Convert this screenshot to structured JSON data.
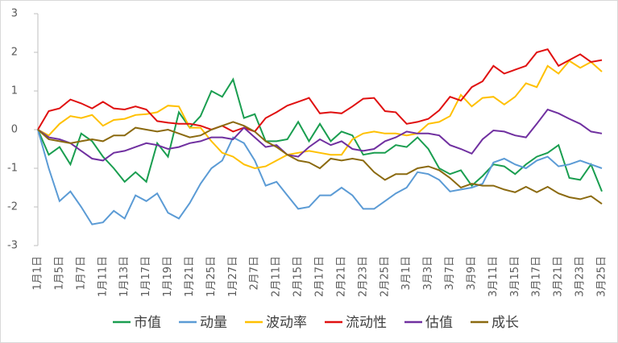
{
  "chart_data": {
    "type": "line",
    "categories": [
      "1月1日",
      null,
      "1月5日",
      null,
      "1月7日",
      null,
      "1月11日",
      null,
      "1月13日",
      null,
      "1月17日",
      null,
      "1月19日",
      null,
      "1月21日",
      null,
      "1月25日",
      null,
      "1月27日",
      null,
      "2月7日",
      null,
      "2月11日",
      null,
      "2月15日",
      null,
      "2月17日",
      null,
      "2月21日",
      null,
      "2月23日",
      null,
      "2月25日",
      null,
      "3月1日",
      null,
      "3月3日",
      null,
      "3月7日",
      null,
      "3月9日",
      null,
      "3月11日",
      null,
      "3月15日",
      null,
      "3月17日",
      null,
      "3月21日",
      null,
      "3月23日",
      null,
      "3月25日"
    ],
    "series": [
      {
        "name": "市值",
        "color": "#1a9e50",
        "values": [
          0,
          -0.65,
          -0.45,
          -0.9,
          -0.1,
          -0.3,
          -0.7,
          -1.0,
          -1.35,
          -1.1,
          -1.35,
          -0.35,
          -0.7,
          0.45,
          0.05,
          0.35,
          1.0,
          0.85,
          1.3,
          0.3,
          0.4,
          -0.3,
          -0.3,
          -0.25,
          0.2,
          -0.3,
          0.15,
          -0.3,
          -0.05,
          -0.15,
          -0.65,
          -0.6,
          -0.6,
          -0.4,
          -0.45,
          -0.2,
          -0.5,
          -1.0,
          -1.15,
          -1.05,
          -1.45,
          -1.2,
          -0.9,
          -0.95,
          -1.15,
          -0.9,
          -0.7,
          -0.6,
          -0.4,
          -1.25,
          -1.3,
          -0.9,
          -1.6
        ]
      },
      {
        "name": "动量",
        "color": "#5b9bd5",
        "values": [
          0,
          -1.0,
          -1.85,
          -1.6,
          -2.0,
          -2.45,
          -2.4,
          -2.1,
          -2.3,
          -1.7,
          -1.85,
          -1.65,
          -2.15,
          -2.3,
          -1.9,
          -1.4,
          -1.0,
          -0.8,
          -0.2,
          -0.35,
          -0.8,
          -1.45,
          -1.35,
          -1.7,
          -2.05,
          -2.0,
          -1.7,
          -1.7,
          -1.5,
          -1.7,
          -2.05,
          -2.05,
          -1.85,
          -1.65,
          -1.5,
          -1.1,
          -1.15,
          -1.3,
          -1.6,
          -1.55,
          -1.5,
          -1.4,
          -0.85,
          -0.75,
          -0.9,
          -1.0,
          -0.8,
          -0.7,
          -0.95,
          -0.9,
          -0.8,
          -0.9,
          -1.0
        ]
      },
      {
        "name": "波动率",
        "color": "#ffc000",
        "values": [
          0,
          -0.15,
          0.15,
          0.35,
          0.3,
          0.38,
          0.1,
          0.25,
          0.28,
          0.38,
          0.4,
          0.45,
          0.62,
          0.6,
          0.05,
          0.05,
          -0.3,
          -0.6,
          -0.7,
          -0.9,
          -1.0,
          -0.95,
          -0.8,
          -0.65,
          -0.6,
          -0.55,
          -0.6,
          -0.65,
          -0.65,
          -0.25,
          -0.1,
          -0.05,
          -0.1,
          -0.1,
          -0.15,
          -0.1,
          0.15,
          0.2,
          0.35,
          0.9,
          0.6,
          0.82,
          0.85,
          0.65,
          0.85,
          1.2,
          1.1,
          1.65,
          1.45,
          1.78,
          1.6,
          1.75,
          1.5
        ]
      },
      {
        "name": "流动性",
        "color": "#e01010",
        "values": [
          0,
          0.48,
          0.55,
          0.78,
          0.68,
          0.55,
          0.72,
          0.55,
          0.52,
          0.6,
          0.52,
          0.22,
          0.18,
          0.15,
          0.15,
          0.1,
          0.0,
          0.1,
          -0.05,
          0.05,
          -0.05,
          0.3,
          0.45,
          0.62,
          0.72,
          0.82,
          0.42,
          0.45,
          0.42,
          0.6,
          0.8,
          0.82,
          0.48,
          0.45,
          0.15,
          0.2,
          0.28,
          0.5,
          0.85,
          0.75,
          1.1,
          1.25,
          1.65,
          1.45,
          1.55,
          1.65,
          2.0,
          2.08,
          1.65,
          1.8,
          1.95,
          1.75,
          1.8
        ]
      },
      {
        "name": "估值",
        "color": "#7030a0",
        "values": [
          0,
          -0.2,
          -0.25,
          -0.35,
          -0.55,
          -0.75,
          -0.8,
          -0.6,
          -0.55,
          -0.45,
          -0.35,
          -0.4,
          -0.5,
          -0.45,
          -0.35,
          -0.3,
          -0.2,
          -0.2,
          -0.25,
          0.05,
          -0.2,
          -0.45,
          -0.4,
          -0.65,
          -0.7,
          -0.45,
          -0.25,
          -0.4,
          -0.3,
          -0.5,
          -0.55,
          -0.5,
          -0.3,
          -0.2,
          -0.05,
          -0.1,
          -0.1,
          -0.15,
          -0.4,
          -0.5,
          -0.62,
          -0.25,
          -0.02,
          -0.05,
          -0.15,
          -0.2,
          0.15,
          0.52,
          0.42,
          0.28,
          0.15,
          -0.05,
          -0.1
        ]
      },
      {
        "name": "成长",
        "color": "#8b6a10",
        "values": [
          0,
          -0.25,
          -0.3,
          -0.35,
          -0.3,
          -0.25,
          -0.3,
          -0.15,
          -0.15,
          0.05,
          0.0,
          -0.05,
          0.0,
          -0.1,
          -0.2,
          -0.15,
          0.0,
          0.1,
          0.2,
          0.1,
          -0.05,
          -0.3,
          -0.45,
          -0.65,
          -0.8,
          -0.85,
          -1.0,
          -0.75,
          -0.8,
          -0.75,
          -0.8,
          -1.1,
          -1.3,
          -1.15,
          -1.15,
          -1.0,
          -0.95,
          -1.05,
          -1.25,
          -1.5,
          -1.4,
          -1.45,
          -1.45,
          -1.55,
          -1.62,
          -1.48,
          -1.62,
          -1.48,
          -1.65,
          -1.75,
          -1.8,
          -1.72,
          -1.92
        ]
      }
    ],
    "ylim": [
      -3,
      3
    ],
    "yticks": [
      -3,
      -2,
      -1,
      0,
      1,
      2,
      3
    ],
    "grid": false
  }
}
